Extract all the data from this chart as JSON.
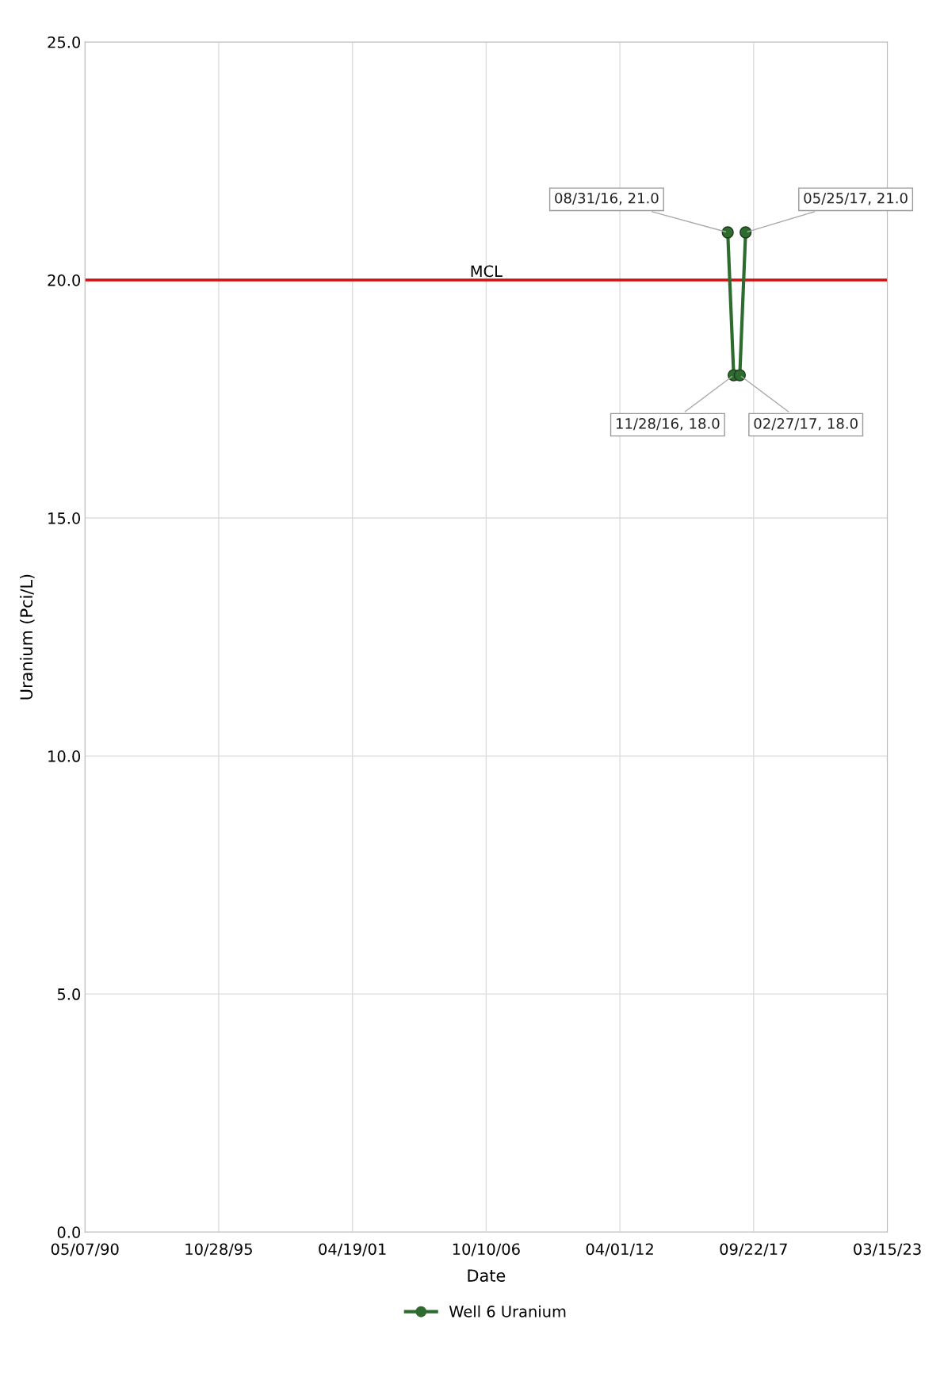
{
  "chart_data": {
    "type": "line",
    "xlabel": "Date",
    "ylabel": "Uranium (Pci/L)",
    "x": [
      "2016-08-31",
      "2016-11-28",
      "2017-02-27",
      "2017-05-25"
    ],
    "series": [
      {
        "name": "Well 6 Uranium",
        "color": "#2e6b2e",
        "values": [
          21.0,
          18.0,
          18.0,
          21.0
        ]
      }
    ],
    "xlim": [
      "1990-05-07",
      "2023-03-15"
    ],
    "xticks": [
      {
        "value": "1990-05-07",
        "label": "05/07/90"
      },
      {
        "value": "1995-10-28",
        "label": "10/28/95"
      },
      {
        "value": "2001-04-19",
        "label": "04/19/01"
      },
      {
        "value": "2006-10-10",
        "label": "10/10/06"
      },
      {
        "value": "2012-04-01",
        "label": "04/01/12"
      },
      {
        "value": "2017-09-22",
        "label": "09/22/17"
      },
      {
        "value": "2023-03-15",
        "label": "03/15/23"
      }
    ],
    "ylim": [
      0,
      25
    ],
    "yticks": [
      {
        "value": 0,
        "label": "0.0"
      },
      {
        "value": 5,
        "label": "5.0"
      },
      {
        "value": 10,
        "label": "10.0"
      },
      {
        "value": 15,
        "label": "15.0"
      },
      {
        "value": 20,
        "label": "20.0"
      },
      {
        "value": 25,
        "label": "25.0"
      }
    ],
    "ref_lines": [
      {
        "axis": "y",
        "value": 20,
        "label": "MCL",
        "color": "#d01010"
      }
    ],
    "annotations": [
      {
        "text": "08/31/16, 21.0",
        "x": "2016-08-31",
        "y": 21.0
      },
      {
        "text": "11/28/16, 18.0",
        "x": "2016-11-28",
        "y": 18.0
      },
      {
        "text": "02/27/17, 18.0",
        "x": "2017-02-27",
        "y": 18.0
      },
      {
        "text": "05/25/17, 21.0",
        "x": "2017-05-25",
        "y": 21.0
      }
    ],
    "grid": true,
    "legend": "bottom",
    "marker": "circle",
    "line_style": "solid"
  }
}
